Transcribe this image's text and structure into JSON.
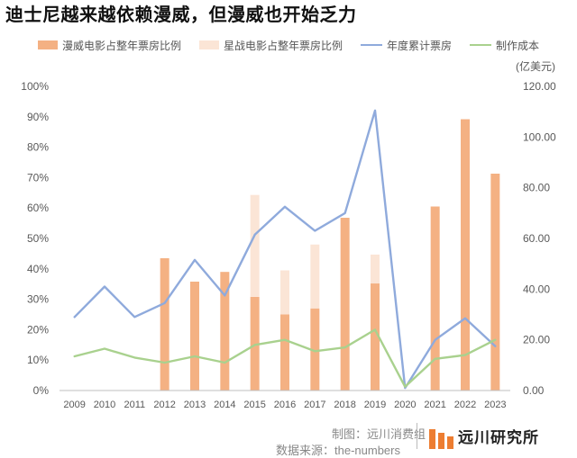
{
  "title": "迪士尼越来越依赖漫威，但漫威也开始乏力",
  "footer": {
    "credit": "制图：远川消费组",
    "source": "数据来源：the-numbers",
    "brand": "远川研究所"
  },
  "colors": {
    "marvel_bar": "#f4b183",
    "starwars_bar": "#fbe5d6",
    "box_office_line": "#8faadc",
    "cost_line": "#a9d18e",
    "brand_logo": "#ed7d31"
  },
  "chart_data": {
    "type": "bar",
    "categories": [
      "2009",
      "2010",
      "2011",
      "2012",
      "2013",
      "2014",
      "2015",
      "2016",
      "2017",
      "2018",
      "2019",
      "2020",
      "2021",
      "2022",
      "2023"
    ],
    "series": [
      {
        "name": "漫威电影占整年票房比例",
        "type": "bar",
        "axis": "left",
        "values": [
          0,
          0,
          0,
          43.5,
          35.8,
          39.0,
          30.8,
          25.0,
          27.0,
          56.8,
          35.2,
          0,
          60.5,
          89.2,
          71.3
        ]
      },
      {
        "name": "星战电影占整年票房比例",
        "type": "bar-stacked",
        "axis": "left",
        "values": [
          0,
          0,
          0,
          0,
          0,
          0,
          33.5,
          14.5,
          21.0,
          0,
          9.5,
          0,
          0,
          0,
          0
        ]
      },
      {
        "name": "年度累计票房",
        "type": "line",
        "axis": "right",
        "values": [
          29.0,
          41.0,
          29.0,
          34.5,
          51.5,
          37.5,
          61.5,
          72.5,
          63.0,
          70.0,
          110.5,
          1.0,
          20.0,
          28.5,
          17.5
        ]
      },
      {
        "name": "制作成本",
        "type": "line",
        "axis": "right",
        "values": [
          13.5,
          16.5,
          13.0,
          11.0,
          13.5,
          11.0,
          18.0,
          20.0,
          15.5,
          17.0,
          24.0,
          1.5,
          12.5,
          14.0,
          20.0
        ]
      }
    ],
    "left_axis": {
      "min": 0,
      "max": 100,
      "step": 10,
      "unit": "%"
    },
    "right_axis": {
      "min": 0,
      "max": 120,
      "step": 20,
      "unit_label": "(亿美元)"
    },
    "ylabel_right": "(亿美元)",
    "grid": false,
    "legend_position": "top"
  }
}
